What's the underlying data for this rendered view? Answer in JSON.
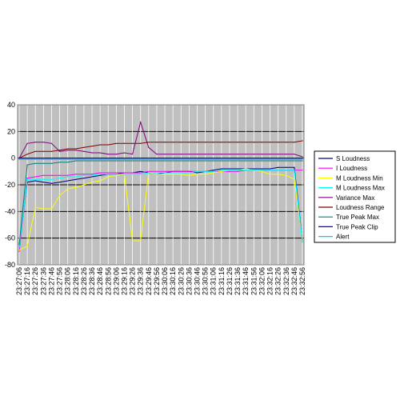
{
  "chart_data": {
    "type": "line",
    "title": "",
    "xlabel": "",
    "ylabel": "",
    "ylim": [
      -80,
      40
    ],
    "yticks": [
      40,
      20,
      0,
      -20,
      -40,
      -60,
      -80
    ],
    "grid": true,
    "plot_background": "#c0c0c0",
    "legend_position": "right",
    "categories": [
      "23:27:06",
      "23:27:16",
      "23:27:26",
      "23:27:36",
      "23:27:46",
      "23:27:56",
      "23:28:06",
      "23:28:16",
      "23:28:26",
      "23:28:36",
      "23:28:46",
      "23:28:56",
      "23:29:06",
      "23:29:16",
      "23:29:26",
      "23:29:36",
      "23:29:46",
      "23:29:56",
      "23:30:06",
      "23:30:16",
      "23:30:26",
      "23:30:36",
      "23:30:46",
      "23:30:56",
      "23:31:06",
      "23:31:16",
      "23:31:26",
      "23:31:36",
      "23:31:46",
      "23:31:56",
      "23:32:06",
      "23:32:16",
      "23:32:26",
      "23:32:36",
      "23:32:46",
      "23:32:56"
    ],
    "series": [
      {
        "name": "S Loudness",
        "color": "#000080",
        "values": [
          -65,
          -18,
          -17,
          -18,
          -19,
          -18,
          -17,
          -16,
          -15,
          -14,
          -13,
          -12,
          -12,
          -11,
          -11,
          -10,
          -11,
          -12,
          -11,
          -10,
          -10,
          -10,
          -11,
          -10,
          -9,
          -8,
          -8,
          -8,
          -8,
          -8,
          -8,
          -8,
          -7,
          -7,
          -7,
          -62
        ]
      },
      {
        "name": "I Loudness",
        "color": "#ff00ff",
        "values": [
          -70,
          -15,
          -14,
          -13,
          -13,
          -13,
          -13,
          -12,
          -12,
          -12,
          -11,
          -11,
          -11,
          -11,
          -11,
          -11,
          -10,
          -10,
          -10,
          -10,
          -10,
          -10,
          -10,
          -10,
          -10,
          -10,
          -10,
          -10,
          -9,
          -9,
          -9,
          -9,
          -9,
          -9,
          -9,
          -9
        ]
      },
      {
        "name": "M Loudness Min",
        "color": "#ffff00",
        "values": [
          -69,
          -66,
          -37,
          -38,
          -38,
          -28,
          -23,
          -22,
          -20,
          -18,
          -17,
          -14,
          -13,
          -12,
          -62,
          -62,
          -11,
          -12,
          -12,
          -12,
          -12,
          -13,
          -12,
          -12,
          -11,
          -10,
          -9,
          -9,
          -8,
          -9,
          -10,
          -12,
          -12,
          -13,
          -16,
          -62
        ]
      },
      {
        "name": "M Loudness Max",
        "color": "#00ffff",
        "values": [
          -67,
          -16,
          -16,
          -16,
          -16,
          -15,
          -14,
          -14,
          -13,
          -13,
          -12,
          -12,
          -12,
          -12,
          -12,
          -12,
          -11,
          -11,
          -11,
          -11,
          -11,
          -11,
          -10,
          -10,
          -10,
          -9,
          -9,
          -9,
          -9,
          -9,
          -9,
          -9,
          -9,
          -9,
          -9,
          -63
        ]
      },
      {
        "name": "Variance Max",
        "color": "#800080",
        "values": [
          0,
          11,
          12,
          12,
          11,
          5,
          6,
          6,
          5,
          4,
          4,
          3,
          3,
          4,
          3,
          27,
          8,
          3,
          3,
          3,
          3,
          3,
          3,
          3,
          3,
          3,
          3,
          3,
          3,
          3,
          3,
          3,
          3,
          3,
          3,
          1
        ]
      },
      {
        "name": "Loudness Range",
        "color": "#800000",
        "values": [
          0,
          3,
          5,
          5,
          5,
          6,
          7,
          7,
          8,
          9,
          10,
          10,
          11,
          11,
          11,
          11,
          12,
          12,
          12,
          12,
          12,
          12,
          12,
          12,
          12,
          12,
          12,
          12,
          12,
          12,
          12,
          12,
          12,
          12,
          12,
          13
        ]
      },
      {
        "name": "True Peak Max",
        "color": "#008080",
        "values": [
          -65,
          -5,
          -4,
          -4,
          -4,
          -3,
          -3,
          -2,
          -2,
          -2,
          -2,
          -2,
          -2,
          -2,
          -2,
          -2,
          -2,
          -2,
          -2,
          -2,
          -2,
          -2,
          -2,
          -2,
          -2,
          -2,
          -2,
          -2,
          -2,
          -2,
          -2,
          -2,
          -2,
          -2,
          -2,
          -2
        ]
      },
      {
        "name": "True Peak Clip",
        "color": "#0000ff",
        "values": [
          0,
          0,
          0,
          0,
          0,
          0,
          0,
          0,
          0,
          0,
          0,
          0,
          0,
          0,
          0,
          0,
          0,
          0,
          0,
          0,
          0,
          0,
          0,
          0,
          0,
          0,
          0,
          0,
          0,
          0,
          0,
          0,
          0,
          0,
          0,
          0
        ]
      },
      {
        "name": "Alert",
        "color": "#00ccff",
        "values": [
          -1,
          -1,
          -1,
          -1,
          -1,
          -1,
          -1,
          -1,
          -1,
          -1,
          -1,
          -1,
          -1,
          -1,
          -1,
          -1,
          -1,
          -1,
          -1,
          -1,
          -1,
          -1,
          -1,
          -1,
          -1,
          -1,
          -1,
          -1,
          -1,
          -1,
          -1,
          -1,
          -1,
          -1,
          -1,
          -1
        ]
      }
    ]
  }
}
